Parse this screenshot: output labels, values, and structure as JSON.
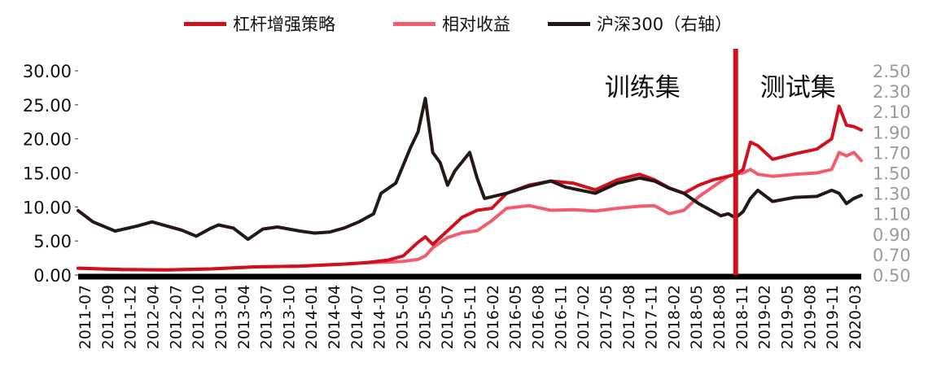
{
  "chart_data": {
    "type": "line",
    "title": "",
    "xlabel": "",
    "ylabel_left": "",
    "ylabel_right": "",
    "left_axis": {
      "ylim": [
        0,
        30
      ],
      "ticks": [
        "0.00",
        "5.00",
        "10.00",
        "15.00",
        "20.00",
        "25.00",
        "30.00"
      ]
    },
    "right_axis": {
      "ylim": [
        0.5,
        2.5
      ],
      "ticks": [
        "0.50",
        "0.70",
        "0.90",
        "1.10",
        "1.30",
        "1.50",
        "1.70",
        "1.90",
        "2.10",
        "2.30",
        "2.50"
      ]
    },
    "x_range": [
      "2011-07",
      "2020-05"
    ],
    "x_tick_labels": [
      "2011-07",
      "2011-09",
      "2011-12",
      "2012-04",
      "2012-07",
      "2012-10",
      "2013-01",
      "2013-04",
      "2013-07",
      "2013-10",
      "2014-01",
      "2014-04",
      "2014-07",
      "2014-10",
      "2015-01",
      "2015-05",
      "2015-07",
      "2015-11",
      "2016-02",
      "2016-05",
      "2016-08",
      "2016-11",
      "2017-02",
      "2017-05",
      "2017-08",
      "2017-11",
      "2018-02",
      "2018-05",
      "2018-08",
      "2018-11",
      "2019-02",
      "2019-05",
      "2019-08",
      "2019-11",
      "2020-03"
    ],
    "grid": false,
    "legend_position": "top",
    "split_date": "2018-12",
    "annotations": {
      "train": "训练集",
      "test": "测试集"
    },
    "series": [
      {
        "name": "杠杆增强策略",
        "axis": "left",
        "color": "#d0101c",
        "points": [
          [
            "2011-07",
            1.0
          ],
          [
            "2012-01",
            0.8
          ],
          [
            "2012-07",
            0.75
          ],
          [
            "2013-01",
            0.9
          ],
          [
            "2013-07",
            1.2
          ],
          [
            "2014-01",
            1.3
          ],
          [
            "2014-07",
            1.6
          ],
          [
            "2014-10",
            1.8
          ],
          [
            "2015-01",
            2.2
          ],
          [
            "2015-03",
            2.8
          ],
          [
            "2015-05",
            4.8
          ],
          [
            "2015-06",
            5.6
          ],
          [
            "2015-07",
            4.5
          ],
          [
            "2015-09",
            6.5
          ],
          [
            "2015-11",
            8.5
          ],
          [
            "2016-01",
            9.5
          ],
          [
            "2016-03",
            9.8
          ],
          [
            "2016-05",
            12.0
          ],
          [
            "2016-08",
            13.2
          ],
          [
            "2016-11",
            13.8
          ],
          [
            "2017-02",
            13.5
          ],
          [
            "2017-05",
            12.5
          ],
          [
            "2017-08",
            14.0
          ],
          [
            "2017-11",
            14.8
          ],
          [
            "2018-01",
            14.0
          ],
          [
            "2018-03",
            12.8
          ],
          [
            "2018-05",
            12.0
          ],
          [
            "2018-07",
            13.2
          ],
          [
            "2018-09",
            14.0
          ],
          [
            "2018-11",
            14.5
          ],
          [
            "2018-12",
            14.8
          ],
          [
            "2019-01",
            15.5
          ],
          [
            "2019-02",
            19.5
          ],
          [
            "2019-03",
            19.0
          ],
          [
            "2019-05",
            17.0
          ],
          [
            "2019-08",
            17.8
          ],
          [
            "2019-11",
            18.5
          ],
          [
            "2020-01",
            20.0
          ],
          [
            "2020-02",
            24.8
          ],
          [
            "2020-03",
            22.0
          ],
          [
            "2020-04",
            21.8
          ],
          [
            "2020-05",
            21.3
          ]
        ]
      },
      {
        "name": "相对收益",
        "axis": "left",
        "color": "#f25c6e",
        "points": [
          [
            "2011-07",
            1.0
          ],
          [
            "2012-01",
            0.8
          ],
          [
            "2012-07",
            0.75
          ],
          [
            "2013-01",
            0.9
          ],
          [
            "2013-07",
            1.2
          ],
          [
            "2014-01",
            1.3
          ],
          [
            "2014-07",
            1.6
          ],
          [
            "2014-10",
            1.8
          ],
          [
            "2015-01",
            1.9
          ],
          [
            "2015-03",
            2.0
          ],
          [
            "2015-05",
            2.3
          ],
          [
            "2015-06",
            2.8
          ],
          [
            "2015-07",
            4.0
          ],
          [
            "2015-09",
            5.5
          ],
          [
            "2015-11",
            6.2
          ],
          [
            "2016-01",
            6.5
          ],
          [
            "2016-03",
            8.0
          ],
          [
            "2016-05",
            9.8
          ],
          [
            "2016-08",
            10.2
          ],
          [
            "2016-11",
            9.5
          ],
          [
            "2017-02",
            9.6
          ],
          [
            "2017-05",
            9.4
          ],
          [
            "2017-08",
            9.8
          ],
          [
            "2017-11",
            10.1
          ],
          [
            "2018-01",
            10.2
          ],
          [
            "2018-03",
            9.0
          ],
          [
            "2018-05",
            9.5
          ],
          [
            "2018-07",
            11.5
          ],
          [
            "2018-09",
            13.0
          ],
          [
            "2018-11",
            14.5
          ],
          [
            "2018-12",
            14.8
          ],
          [
            "2019-01",
            15.0
          ],
          [
            "2019-02",
            15.5
          ],
          [
            "2019-03",
            14.8
          ],
          [
            "2019-05",
            14.5
          ],
          [
            "2019-08",
            14.8
          ],
          [
            "2019-11",
            15.0
          ],
          [
            "2020-01",
            15.5
          ],
          [
            "2020-02",
            18.0
          ],
          [
            "2020-03",
            17.5
          ],
          [
            "2020-04",
            18.0
          ],
          [
            "2020-05",
            16.8
          ]
        ]
      },
      {
        "name": "沪深300（右轴）",
        "axis": "right",
        "color": "#231815",
        "points": [
          [
            "2011-07",
            1.13
          ],
          [
            "2011-09",
            1.02
          ],
          [
            "2011-12",
            0.93
          ],
          [
            "2012-03",
            0.98
          ],
          [
            "2012-05",
            1.02
          ],
          [
            "2012-07",
            0.98
          ],
          [
            "2012-09",
            0.94
          ],
          [
            "2012-11",
            0.88
          ],
          [
            "2013-01",
            0.96
          ],
          [
            "2013-02",
            0.99
          ],
          [
            "2013-04",
            0.96
          ],
          [
            "2013-06",
            0.85
          ],
          [
            "2013-08",
            0.95
          ],
          [
            "2013-10",
            0.97
          ],
          [
            "2014-01",
            0.93
          ],
          [
            "2014-03",
            0.91
          ],
          [
            "2014-05",
            0.92
          ],
          [
            "2014-07",
            0.96
          ],
          [
            "2014-09",
            1.02
          ],
          [
            "2014-11",
            1.1
          ],
          [
            "2014-12",
            1.3
          ],
          [
            "2015-02",
            1.4
          ],
          [
            "2015-04",
            1.75
          ],
          [
            "2015-05",
            1.9
          ],
          [
            "2015-06",
            2.23
          ],
          [
            "2015-07",
            1.7
          ],
          [
            "2015-08",
            1.6
          ],
          [
            "2015-09",
            1.38
          ],
          [
            "2015-10",
            1.52
          ],
          [
            "2015-12",
            1.7
          ],
          [
            "2016-01",
            1.45
          ],
          [
            "2016-02",
            1.25
          ],
          [
            "2016-05",
            1.3
          ],
          [
            "2016-08",
            1.37
          ],
          [
            "2016-11",
            1.42
          ],
          [
            "2017-01",
            1.36
          ],
          [
            "2017-05",
            1.3
          ],
          [
            "2017-08",
            1.4
          ],
          [
            "2017-11",
            1.45
          ],
          [
            "2018-01",
            1.42
          ],
          [
            "2018-03",
            1.35
          ],
          [
            "2018-05",
            1.3
          ],
          [
            "2018-07",
            1.2
          ],
          [
            "2018-09",
            1.12
          ],
          [
            "2018-10",
            1.08
          ],
          [
            "2018-11",
            1.1
          ],
          [
            "2018-12",
            1.06
          ],
          [
            "2019-01",
            1.12
          ],
          [
            "2019-02",
            1.25
          ],
          [
            "2019-03",
            1.33
          ],
          [
            "2019-05",
            1.22
          ],
          [
            "2019-08",
            1.26
          ],
          [
            "2019-11",
            1.27
          ],
          [
            "2020-01",
            1.33
          ],
          [
            "2020-02",
            1.3
          ],
          [
            "2020-03",
            1.2
          ],
          [
            "2020-04",
            1.25
          ],
          [
            "2020-05",
            1.28
          ]
        ]
      }
    ]
  }
}
